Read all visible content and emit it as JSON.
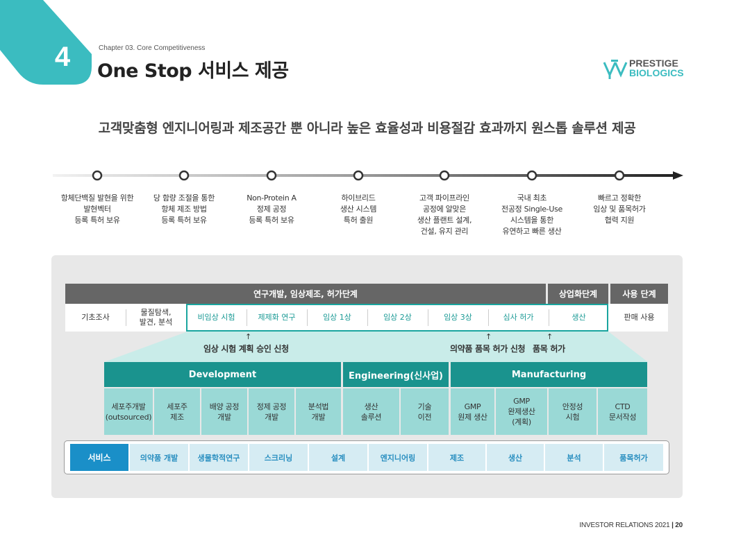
{
  "header": {
    "chapter_number": "4",
    "chapter_label": "Chapter 03. Core Competitiveness",
    "title": "One Stop 서비스 제공",
    "logo_line1": "PRESTIGE",
    "logo_line2": "BIOLOGICS"
  },
  "subtitle": "고객맞춤형 엔지니어링과 제조공간 뿐 아니라 높은 효율성과 비용절감 효과까지 원스톱 솔루션 제공",
  "timeline": [
    {
      "lines": [
        "항체단백질 발현을 위한",
        "발현벡터",
        "등록 특허 보유"
      ]
    },
    {
      "lines": [
        "당 함량 조절을 통한",
        "항체 제조 방법",
        "등록 특허 보유"
      ]
    },
    {
      "lines": [
        "Non-Protein A",
        "정제 공정",
        "등록 특허 보유"
      ]
    },
    {
      "lines": [
        "하이브리드",
        "생산 시스템",
        "특허 출원"
      ]
    },
    {
      "lines": [
        "고객 파이프라인",
        "공정에 알맞은",
        "생산 플랜트 설계,",
        "건설, 유지 관리"
      ]
    },
    {
      "lines": [
        "국내 최초",
        "전공정 Single-Use",
        "시스템을 통한",
        "유연하고 빠른 생산"
      ]
    },
    {
      "lines": [
        "빠르고 정확한",
        "임상 및 품목허가",
        "협력 지원"
      ]
    }
  ],
  "stages_header": {
    "rnd": "연구개발, 임상제조, 허가단계",
    "commercial": "상업화단계",
    "use": "사용 단계"
  },
  "stages": [
    {
      "label": "기초조사"
    },
    {
      "label": "물질탐색,\n발견, 분석"
    },
    {
      "label": "비임상 시험"
    },
    {
      "label": "제제화 연구"
    },
    {
      "label": "임상 1상"
    },
    {
      "label": "임상 2상"
    },
    {
      "label": "임상 3상"
    },
    {
      "label": "심사 허가"
    },
    {
      "label": "생산"
    },
    {
      "label": "판매 사용"
    }
  ],
  "milestones": {
    "ind": "임상 시험 계획 승인 신청",
    "nda": "의약품 품목 허가 신청",
    "approval": "품목 허가"
  },
  "sections": {
    "development": "Development",
    "engineering": "Engineering(신사업)",
    "manufacturing": "Manufacturing"
  },
  "sub_items": [
    {
      "label": "세포주개발\n(outsourced)"
    },
    {
      "label": "세포주\n제조"
    },
    {
      "label": "배양 공정\n개발"
    },
    {
      "label": "정제 공정\n개발"
    },
    {
      "label": "분석법\n개발"
    },
    {
      "label": "생산\n솔루션"
    },
    {
      "label": "기술\n이전"
    },
    {
      "label": "GMP\n원제 생산"
    },
    {
      "label": "GMP\n완제생산\n(계획)"
    },
    {
      "label": "안정성\n시험"
    },
    {
      "label": "CTD\n문서작성"
    }
  ],
  "services": {
    "title": "서비스",
    "items": [
      "의약품 개발",
      "생물학적연구",
      "스크리닝",
      "설계",
      "엔지니어링",
      "제조",
      "생산",
      "분석",
      "품목허가"
    ]
  },
  "footer": {
    "text": "INVESTOR RELATIONS 2021",
    "separator": "|",
    "page": "20"
  },
  "colors": {
    "teal": "#3bbcc0",
    "dark_teal": "#1a938e",
    "light_teal": "#9ad9d6",
    "service_blue": "#1a8fc8",
    "service_light": "#d6ecf3",
    "header_gray": "#666666"
  }
}
